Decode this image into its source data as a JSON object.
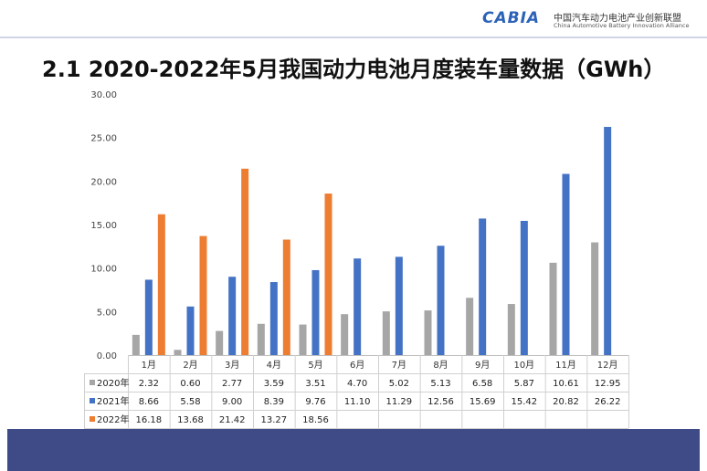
{
  "logo": {
    "mark": "CABIA",
    "name_cn": "中国汽车动力电池产业创新联盟",
    "name_en": "China Automotive Battery Innovation Alliance"
  },
  "page_title": "2.1 2020-2022年5月我国动力电池月度装车量数据（GWh）",
  "chart_data": {
    "type": "bar",
    "categories": [
      "1月",
      "2月",
      "3月",
      "4月",
      "5月",
      "6月",
      "7月",
      "8月",
      "9月",
      "10月",
      "11月",
      "12月"
    ],
    "series": [
      {
        "name": "2020年",
        "color": "#a6a6a6",
        "values": [
          2.32,
          0.6,
          2.77,
          3.59,
          3.51,
          4.7,
          5.02,
          5.13,
          6.58,
          5.87,
          10.61,
          12.95
        ],
        "labels": [
          "2.32",
          "0.60",
          "2.77",
          "3.59",
          "3.51",
          "4.70",
          "5.02",
          "5.13",
          "6.58",
          "5.87",
          "10.61",
          "12.95"
        ]
      },
      {
        "name": "2021年",
        "color": "#4472c4",
        "values": [
          8.66,
          5.58,
          9.0,
          8.39,
          9.76,
          11.1,
          11.29,
          12.56,
          15.69,
          15.42,
          20.82,
          26.22
        ],
        "labels": [
          "8.66",
          "5.58",
          "9.00",
          "8.39",
          "9.76",
          "11.10",
          "11.29",
          "12.56",
          "15.69",
          "15.42",
          "20.82",
          "26.22"
        ]
      },
      {
        "name": "2022年",
        "color": "#ed7d31",
        "values": [
          16.18,
          13.68,
          21.42,
          13.27,
          18.56,
          null,
          null,
          null,
          null,
          null,
          null,
          null
        ],
        "labels": [
          "16.18",
          "13.68",
          "21.42",
          "13.27",
          "18.56",
          "",
          "",
          "",
          "",
          "",
          "",
          ""
        ]
      }
    ],
    "ylim": [
      0,
      30
    ],
    "yticks": [
      "0.00",
      "5.00",
      "10.00",
      "15.00",
      "20.00",
      "25.00",
      "30.00"
    ],
    "grid": false,
    "legend": "data-table"
  }
}
